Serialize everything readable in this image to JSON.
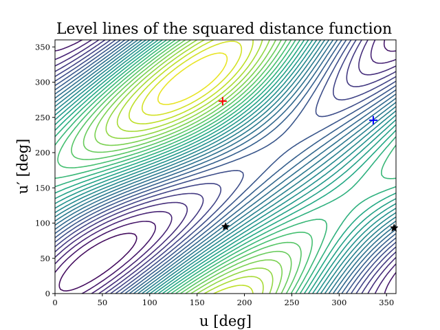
{
  "chart_data": {
    "type": "contour",
    "title": "Level lines of the squared distance function",
    "xlabel": "u [deg]",
    "ylabel": "u′ [deg]",
    "xlim": [
      0,
      360
    ],
    "ylim": [
      0,
      360
    ],
    "xticks": [
      0,
      50,
      100,
      150,
      200,
      250,
      300,
      350
    ],
    "yticks": [
      0,
      50,
      100,
      150,
      200,
      250,
      300,
      350
    ],
    "colormap": "viridis",
    "grid": false,
    "markers": [
      {
        "name": "maximum",
        "shape": "plus",
        "color": "#ff0000",
        "x": 177,
        "y": 273
      },
      {
        "name": "saddle",
        "shape": "plus",
        "color": "#0000ff",
        "x": 336,
        "y": 246
      },
      {
        "name": "minimum-1",
        "shape": "star",
        "color": "#000000",
        "x": 180,
        "y": 95
      },
      {
        "name": "minimum-2",
        "shape": "star",
        "color": "#000000",
        "x": 358,
        "y": 93
      }
    ]
  }
}
